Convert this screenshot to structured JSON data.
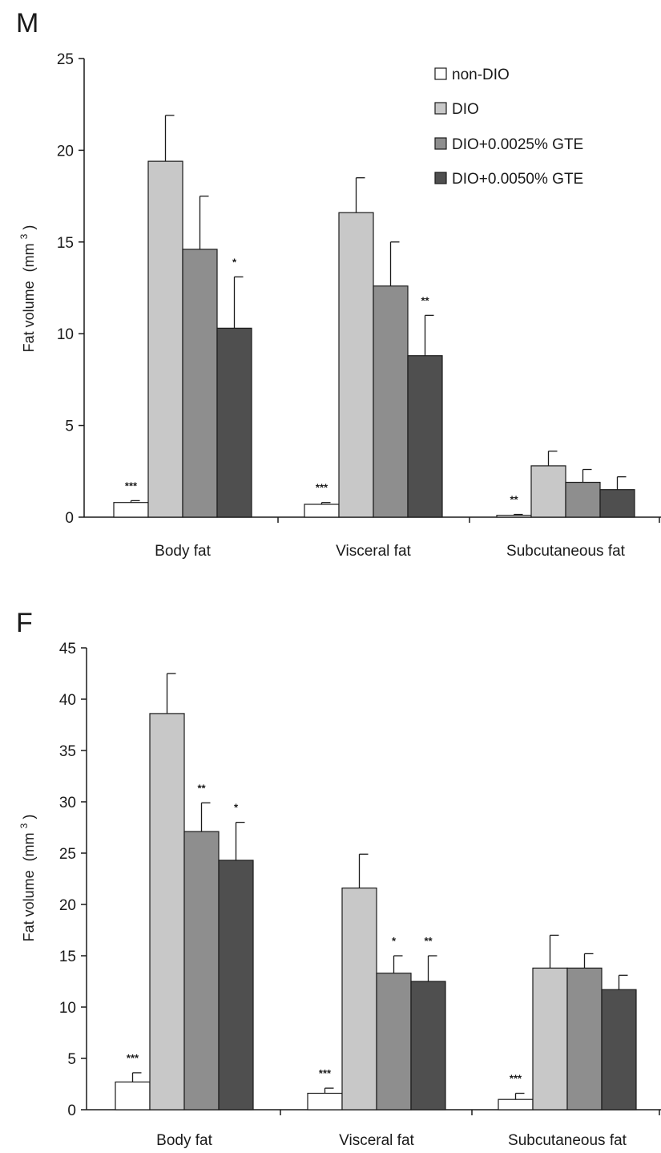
{
  "colors": {
    "non-DIO": "#ffffff",
    "DIO": "#c8c8c8",
    "DIO+0.0025% GTE": "#8e8e8e",
    "DIO+0.0050% GTE": "#4f4f4f",
    "axis": "#1a1a1a"
  },
  "chart_data": [
    {
      "type": "bar",
      "panel": "M",
      "ylabel_main": "Fat volume",
      "ylabel_unit": "(mm",
      "ylabel_sup": "3",
      "ylabel_close": ")",
      "ylim": [
        0,
        25
      ],
      "yticks": [
        0,
        5,
        10,
        15,
        20,
        25
      ],
      "grid": false,
      "legend": "top-right",
      "categories": [
        "Body fat",
        "Visceral fat",
        "Subcutaneous fat"
      ],
      "series": [
        {
          "name": "non-DIO",
          "values": [
            0.8,
            0.7,
            0.1
          ],
          "errors": [
            0.1,
            0.1,
            0.05
          ],
          "sig": [
            "***",
            "***",
            "**"
          ]
        },
        {
          "name": "DIO",
          "values": [
            19.4,
            16.6,
            2.8
          ],
          "errors": [
            2.5,
            1.9,
            0.8
          ],
          "sig": [
            "",
            "",
            ""
          ]
        },
        {
          "name": "DIO+0.0025% GTE",
          "values": [
            14.6,
            12.6,
            1.9
          ],
          "errors": [
            2.9,
            2.4,
            0.7
          ],
          "sig": [
            "",
            "",
            ""
          ]
        },
        {
          "name": "DIO+0.0050% GTE",
          "values": [
            10.3,
            8.8,
            1.5
          ],
          "errors": [
            2.8,
            2.2,
            0.7
          ],
          "sig": [
            "*",
            "**",
            ""
          ]
        }
      ]
    },
    {
      "type": "bar",
      "panel": "F",
      "ylabel_main": "Fat volume",
      "ylabel_unit": "(mm",
      "ylabel_sup": "3",
      "ylabel_close": ")",
      "ylim": [
        0,
        45
      ],
      "yticks": [
        0,
        5,
        10,
        15,
        20,
        25,
        30,
        35,
        40,
        45
      ],
      "grid": false,
      "legend": "none",
      "categories": [
        "Body fat",
        "Visceral fat",
        "Subcutaneous fat"
      ],
      "series": [
        {
          "name": "non-DIO",
          "values": [
            2.7,
            1.6,
            1.0
          ],
          "errors": [
            0.9,
            0.5,
            0.6
          ],
          "sig": [
            "***",
            "***",
            "***"
          ]
        },
        {
          "name": "DIO",
          "values": [
            38.6,
            21.6,
            13.8
          ],
          "errors": [
            3.9,
            3.3,
            3.2
          ],
          "sig": [
            "",
            "",
            ""
          ]
        },
        {
          "name": "DIO+0.0025% GTE",
          "values": [
            27.1,
            13.3,
            13.8
          ],
          "errors": [
            2.8,
            1.7,
            1.4
          ],
          "sig": [
            "**",
            "*",
            ""
          ]
        },
        {
          "name": "DIO+0.0050% GTE",
          "values": [
            24.3,
            12.5,
            11.7
          ],
          "errors": [
            3.7,
            2.5,
            1.4
          ],
          "sig": [
            "*",
            "**",
            ""
          ]
        }
      ]
    }
  ]
}
